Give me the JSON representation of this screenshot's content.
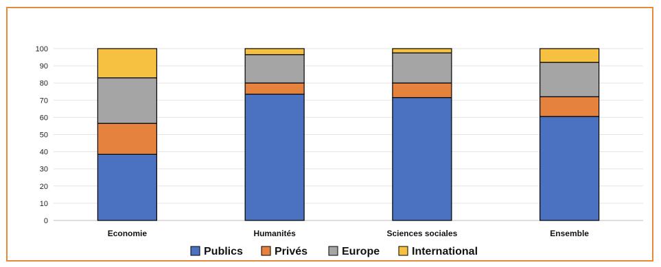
{
  "chart_data": {
    "type": "bar",
    "stacked": true,
    "categories": [
      "Economie",
      "Humanités",
      "Sciences sociales",
      "Ensemble"
    ],
    "series": [
      {
        "name": "Publics",
        "color": "#4a72c0",
        "values": [
          38.5,
          73.5,
          71.5,
          60.5
        ]
      },
      {
        "name": "Privés",
        "color": "#e5823d",
        "values": [
          18,
          6.5,
          8.5,
          11.5
        ]
      },
      {
        "name": "Europe",
        "color": "#a5a5a5",
        "values": [
          26.5,
          16.5,
          17.5,
          20
        ]
      },
      {
        "name": "International",
        "color": "#f6c141",
        "values": [
          17,
          3.5,
          2.5,
          8
        ]
      }
    ],
    "ylim": [
      0,
      100
    ],
    "yticks": [
      0,
      10,
      20,
      30,
      40,
      50,
      60,
      70,
      80,
      90,
      100
    ],
    "grid": true,
    "legend_position": "bottom"
  }
}
